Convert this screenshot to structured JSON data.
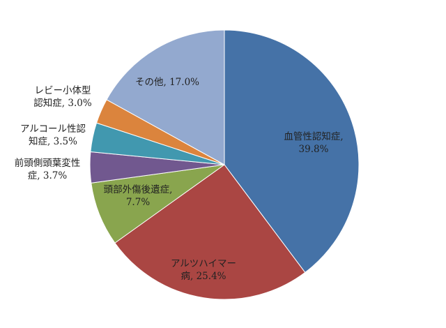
{
  "chart_data": {
    "type": "pie",
    "title": "",
    "slices": [
      {
        "label": "血管性認知症",
        "value": 39.8,
        "display": [
          "血管性認知症,",
          "39.8%"
        ],
        "color": "#4572A7"
      },
      {
        "label": "アルツハイマー病",
        "value": 25.4,
        "display": [
          "アルツハイマー",
          "病, 25.4%"
        ],
        "color": "#AA4643"
      },
      {
        "label": "頭部外傷後遺症",
        "value": 7.7,
        "display": [
          "頭部外傷後遺症,",
          "7.7%"
        ],
        "color": "#89A54E"
      },
      {
        "label": "前頭側頭葉変性症",
        "value": 3.7,
        "display": [
          "前頭側頭葉変性",
          "症, 3.7%"
        ],
        "color": "#71588F"
      },
      {
        "label": "アルコール性認知症",
        "value": 3.5,
        "display": [
          "アルコール性認",
          "知症, 3.5%"
        ],
        "color": "#4198AF"
      },
      {
        "label": "レビー小体型認知症",
        "value": 3.0,
        "display": [
          "レビー小体型",
          "認知症, 3.0%"
        ],
        "color": "#DB843D"
      },
      {
        "label": "その他",
        "value": 17.0,
        "display": [
          "その他, 17.0%"
        ],
        "color": "#93A9CF"
      }
    ],
    "legend": "none",
    "start_angle": "12 o'clock",
    "direction": "clockwise"
  }
}
